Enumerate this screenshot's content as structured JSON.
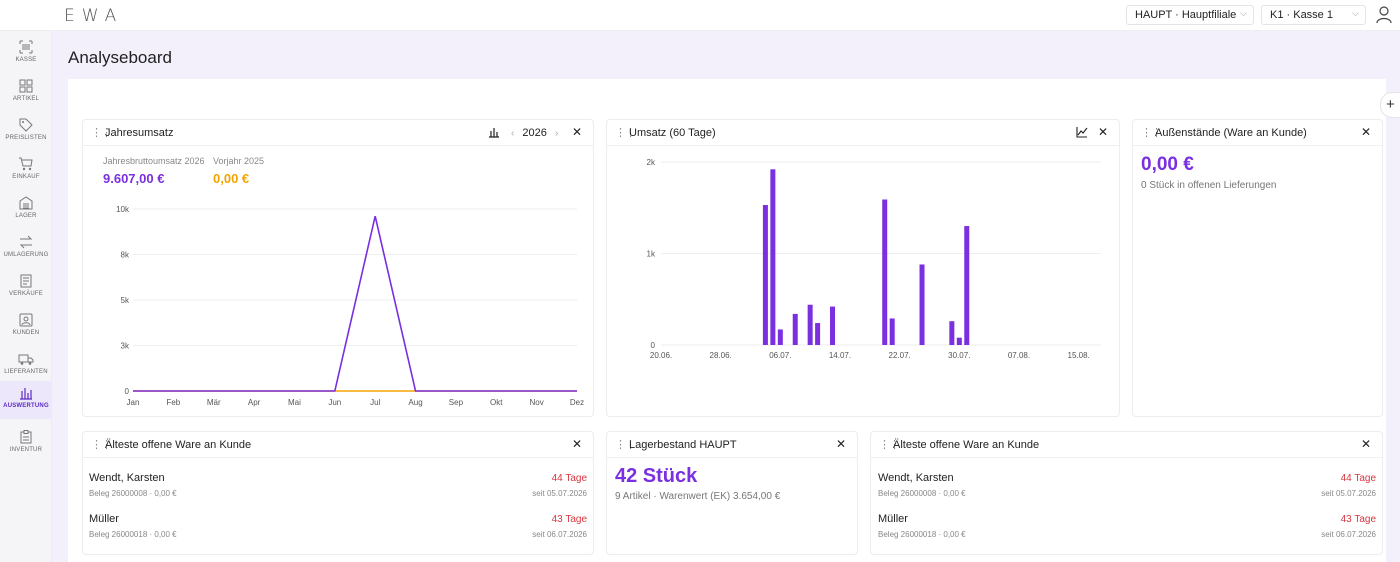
{
  "app": {
    "logo": "EWA"
  },
  "topbar": {
    "branch_select": "HAUPT · Hauptfiliale",
    "register_select": "K1 · Kasse 1"
  },
  "sidebar": {
    "items": [
      {
        "label": "KASSE",
        "icon": "barcode-icon"
      },
      {
        "label": "ARTIKEL",
        "icon": "grid-icon"
      },
      {
        "label": "PREISLISTEN",
        "icon": "tags-icon"
      },
      {
        "label": "EINKAUF",
        "icon": "cart-icon"
      },
      {
        "label": "LAGER",
        "icon": "warehouse-icon"
      },
      {
        "label": "UMLAGERUNG",
        "icon": "transfer-icon"
      },
      {
        "label": "VERKÄUFE",
        "icon": "receipt-icon"
      },
      {
        "label": "KUNDEN",
        "icon": "customer-icon"
      },
      {
        "label": "LIEFERANTEN",
        "icon": "truck-icon"
      },
      {
        "label": "AUSWERTUNG",
        "icon": "bar-chart-icon",
        "active": true
      },
      {
        "label": "INVENTUR",
        "icon": "clipboard-icon"
      }
    ]
  },
  "page": {
    "title": "Analyseboard"
  },
  "colors": {
    "accent": "#7a2fe0",
    "orange": "#f5a300",
    "danger": "#d9363e"
  },
  "yearly": {
    "title": "Jahresumsatz",
    "year": "2026",
    "current_label": "Jahresbruttoumsatz 2026",
    "current_value": "9.607,00 €",
    "prev_label": "Vorjahr 2025",
    "prev_value": "0,00 €"
  },
  "umsatz60": {
    "title": "Umsatz (60 Tage)"
  },
  "outstanding": {
    "title": "Außenstände (Ware an Kunde)",
    "value": "0,00 €",
    "subtitle": "0 Stück in offenen Lieferungen"
  },
  "oldest_left": {
    "title": "Älteste offene Ware an Kunde",
    "rows": [
      {
        "name": "Wendt, Karsten",
        "meta": "Beleg 26000008 · 0,00 €",
        "days": "44 Tage",
        "since": "seit 05.07.2026"
      },
      {
        "name": "Müller",
        "meta": "Beleg 26000018 · 0,00 €",
        "days": "43 Tage",
        "since": "seit 06.07.2026"
      }
    ]
  },
  "stock": {
    "title": "Lagerbestand HAUPT",
    "value": "42 Stück",
    "subtitle": "9 Artikel · Warenwert (EK) 3.654,00 €"
  },
  "oldest_right": {
    "title": "Älteste offene Ware an Kunde",
    "rows": [
      {
        "name": "Wendt, Karsten",
        "meta": "Beleg 26000008 · 0,00 €",
        "days": "44 Tage",
        "since": "seit 05.07.2026"
      },
      {
        "name": "Müller",
        "meta": "Beleg 26000018 · 0,00 €",
        "days": "43 Tage",
        "since": "seit 06.07.2026"
      }
    ]
  },
  "chart_data": [
    {
      "type": "line",
      "categories": [
        "Jan",
        "Feb",
        "Mär",
        "Apr",
        "Mai",
        "Jun",
        "Jul",
        "Aug",
        "Sep",
        "Okt",
        "Nov",
        "Dez"
      ],
      "y_ticks": [
        "0",
        "3k",
        "5k",
        "8k",
        "10k"
      ],
      "ylim": [
        0,
        10000
      ],
      "series": [
        {
          "values": [
            0,
            0,
            0,
            0,
            0,
            0,
            9607,
            0,
            0,
            0,
            0,
            0
          ],
          "color": "#7a2fe0"
        },
        {
          "values": [
            0,
            0,
            0,
            0,
            0,
            0,
            0,
            0,
            0,
            0,
            0,
            0
          ],
          "color": "#f5a300"
        }
      ],
      "grid": true
    },
    {
      "type": "bar",
      "x_range": [
        "2026-06-20",
        "2026-08-18"
      ],
      "x_ticks": [
        "20.06.",
        "28.06.",
        "06.07.",
        "14.07.",
        "22.07.",
        "30.07.",
        "07.08.",
        "15.08."
      ],
      "y_ticks": [
        "0",
        "1k",
        "2k"
      ],
      "ylim": [
        0,
        2000
      ],
      "bars": [
        {
          "date": "2026-07-04",
          "value": 1530
        },
        {
          "date": "2026-07-05",
          "value": 1920
        },
        {
          "date": "2026-07-06",
          "value": 170
        },
        {
          "date": "2026-07-08",
          "value": 340
        },
        {
          "date": "2026-07-10",
          "value": 440
        },
        {
          "date": "2026-07-11",
          "value": 240
        },
        {
          "date": "2026-07-13",
          "value": 420
        },
        {
          "date": "2026-07-20",
          "value": 1590
        },
        {
          "date": "2026-07-21",
          "value": 290
        },
        {
          "date": "2026-07-25",
          "value": 880
        },
        {
          "date": "2026-07-29",
          "value": 260
        },
        {
          "date": "2026-07-30",
          "value": 80
        },
        {
          "date": "2026-07-31",
          "value": 1300
        }
      ],
      "color": "#7a2fe0",
      "grid": true
    }
  ]
}
